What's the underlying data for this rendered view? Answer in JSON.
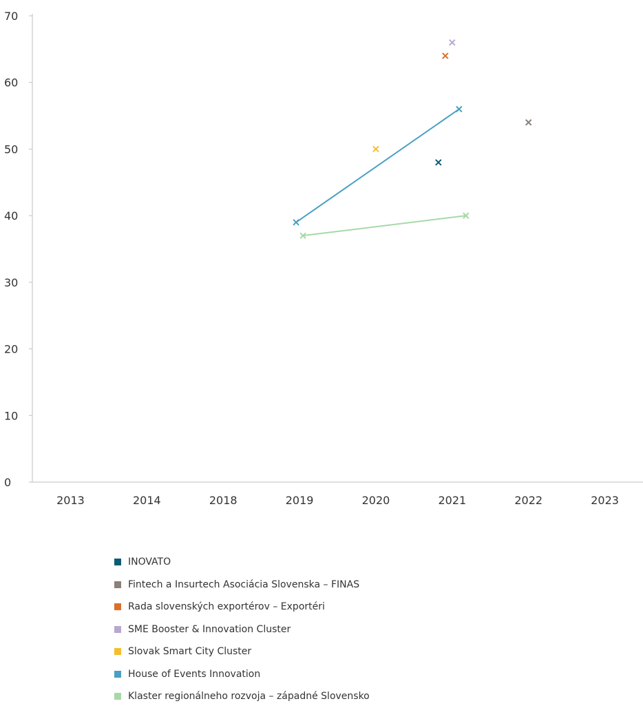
{
  "chart_data": {
    "type": "scatter",
    "title": "",
    "xlabel": "",
    "ylabel": "",
    "categories": [
      "2013",
      "2014",
      "2018",
      "2019",
      "2020",
      "2021",
      "2022",
      "2023"
    ],
    "ylim": [
      0,
      70
    ],
    "y_ticks": [
      0,
      10,
      20,
      30,
      40,
      50,
      60,
      70
    ],
    "grid": false,
    "legend_position": "bottom",
    "marker": "x",
    "series": [
      {
        "name": "INOVATO",
        "color": "#0d5c75",
        "points": [
          {
            "x": "2021",
            "y": 48
          }
        ],
        "line": false
      },
      {
        "name": "Fintech a Insurtech Asociácia Slovenska – FINAS",
        "color": "#8c807a",
        "points": [
          {
            "x": "2022",
            "y": 54
          }
        ],
        "line": false
      },
      {
        "name": "Rada slovenských exportérov – Exportéri",
        "color": "#d9702c",
        "points": [
          {
            "x": "2021",
            "y": 64
          }
        ],
        "line": false
      },
      {
        "name": "SME Booster & Innovation Cluster",
        "color": "#b8a8cf",
        "points": [
          {
            "x": "2021",
            "y": 66
          }
        ],
        "line": false
      },
      {
        "name": "Slovak Smart City Cluster",
        "color": "#f5be2e",
        "points": [
          {
            "x": "2020",
            "y": 50
          }
        ],
        "line": false
      },
      {
        "name": "House of Events Innovation",
        "color": "#4a9fc4",
        "points": [
          {
            "x": "2019",
            "y": 39
          },
          {
            "x": "2021",
            "y": 56
          }
        ],
        "line": true
      },
      {
        "name": "Klaster regionálneho rozvoja – západné Slovensko",
        "color": "#a6d9a6",
        "points": [
          {
            "x": "2019",
            "y": 37
          },
          {
            "x": "2021",
            "y": 40
          }
        ],
        "line": true
      }
    ]
  }
}
